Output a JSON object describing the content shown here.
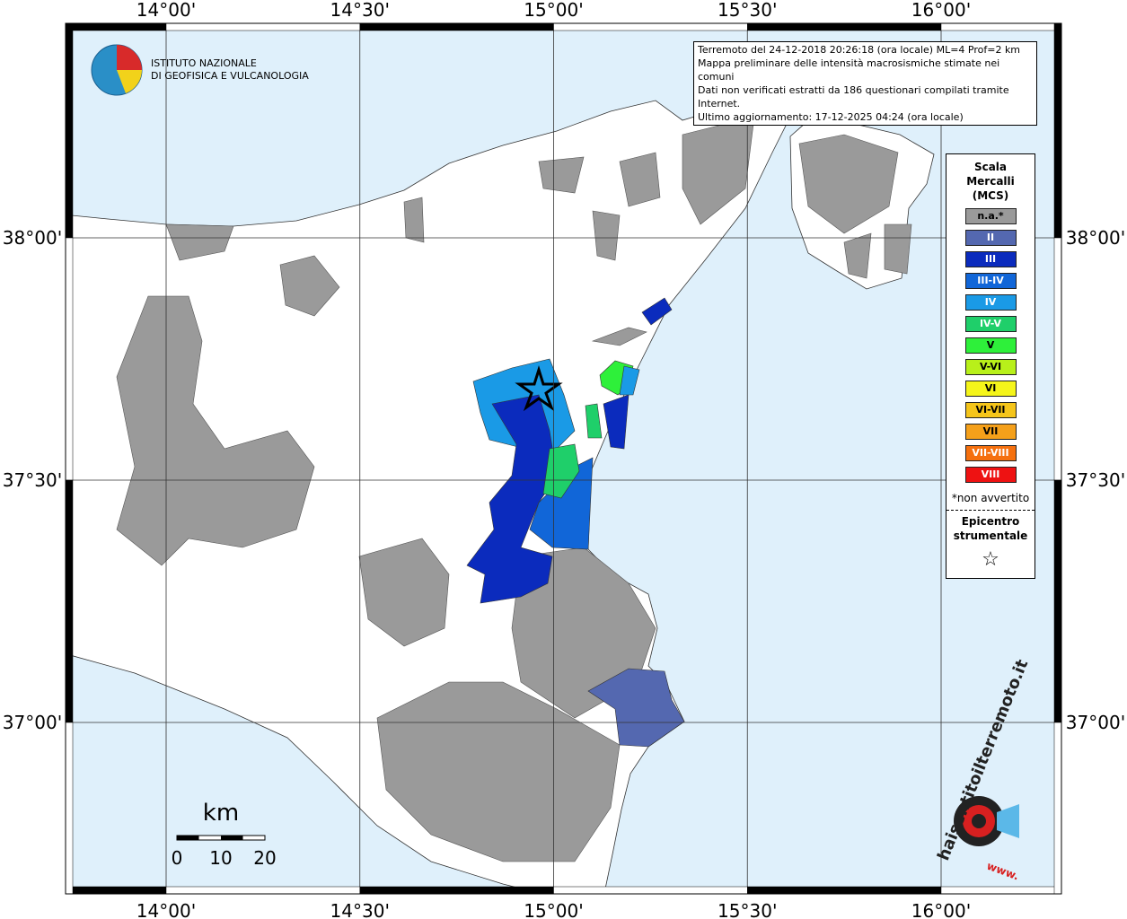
{
  "header": {
    "institute": [
      "ISTITUTO NAZIONALE",
      "DI GEOFISICA E VULCANOLOGIA"
    ]
  },
  "info": [
    "Terremoto del 24-12-2018 20:26:18 (ora locale) ML=4 Prof=2 km",
    "Mappa preliminare delle intensità macrosismiche stimate nei comuni",
    "Dati non verificati estratti da 186 questionari compilati tramite Internet.",
    "Ultimo aggiornamento: 17-12-2025 04:24 (ora locale)"
  ],
  "grid": {
    "lon": [
      {
        "value": 14,
        "label": "14°00'"
      },
      {
        "value": 14.5,
        "label": "14°30'"
      },
      {
        "value": 15,
        "label": "15°00'"
      },
      {
        "value": 15.5,
        "label": "15°30'"
      },
      {
        "value": 16,
        "label": "16°00'"
      }
    ],
    "lat": [
      {
        "value": 38,
        "label": "38°00'"
      },
      {
        "value": 37.5,
        "label": "37°30'"
      },
      {
        "value": 37,
        "label": "37°00'"
      }
    ]
  },
  "legend": {
    "title": [
      "Scala",
      "Mercalli",
      "(MCS)"
    ],
    "items": [
      {
        "label": "n.a.*",
        "color": "#9a9a9a"
      },
      {
        "label": "II",
        "color": "#5468b0"
      },
      {
        "label": "III",
        "color": "#0b2bbd"
      },
      {
        "label": "III-IV",
        "color": "#1166d8"
      },
      {
        "label": "IV",
        "color": "#1a9ae6"
      },
      {
        "label": "IV-V",
        "color": "#1fcf6a"
      },
      {
        "label": "V",
        "color": "#2ef03a"
      },
      {
        "label": "V-VI",
        "color": "#b8f01a"
      },
      {
        "label": "VI",
        "color": "#f5f51a"
      },
      {
        "label": "VI-VII",
        "color": "#f5c51a"
      },
      {
        "label": "VII",
        "color": "#f5a01a"
      },
      {
        "label": "VII-VIII",
        "color": "#f5700e"
      },
      {
        "label": "VIII",
        "color": "#ee1212"
      }
    ],
    "note": "*non avvertito",
    "epicenter": [
      "Epicentro",
      "strumentale"
    ],
    "epicenter_symbol": "☆"
  },
  "scale_bar": {
    "unit": "km",
    "ticks": [
      0,
      10,
      20
    ]
  },
  "watermark": {
    "site": "haisentitoilterremoto.it",
    "prefix": "www."
  }
}
